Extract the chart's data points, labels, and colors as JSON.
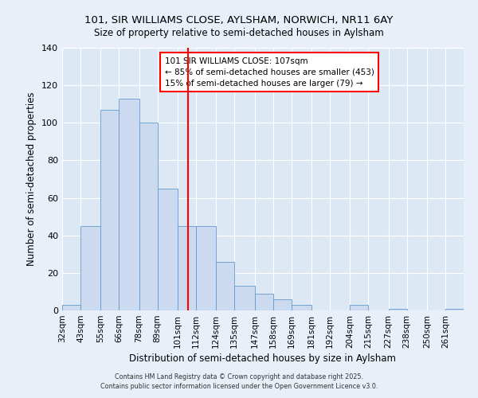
{
  "title": "101, SIR WILLIAMS CLOSE, AYLSHAM, NORWICH, NR11 6AY",
  "subtitle": "Size of property relative to semi-detached houses in Aylsham",
  "xlabel": "Distribution of semi-detached houses by size in Aylsham",
  "ylabel": "Number of semi-detached properties",
  "bin_labels": [
    "32sqm",
    "43sqm",
    "55sqm",
    "66sqm",
    "78sqm",
    "89sqm",
    "101sqm",
    "112sqm",
    "124sqm",
    "135sqm",
    "147sqm",
    "158sqm",
    "169sqm",
    "181sqm",
    "192sqm",
    "204sqm",
    "215sqm",
    "227sqm",
    "238sqm",
    "250sqm",
    "261sqm"
  ],
  "bin_edges": [
    32,
    43,
    55,
    66,
    78,
    89,
    101,
    112,
    124,
    135,
    147,
    158,
    169,
    181,
    192,
    204,
    215,
    227,
    238,
    250,
    261
  ],
  "bar_heights": [
    3,
    45,
    107,
    113,
    100,
    65,
    45,
    45,
    26,
    13,
    9,
    6,
    3,
    0,
    0,
    3,
    0,
    1,
    0,
    0,
    1
  ],
  "bar_color": "#ccdaf0",
  "bar_edge_color": "#6699cc",
  "marker_value": 107,
  "marker_color": "#ff0000",
  "annotation_title": "101 SIR WILLIAMS CLOSE: 107sqm",
  "annotation_line1": "← 85% of semi-detached houses are smaller (453)",
  "annotation_line2": "15% of semi-detached houses are larger (79) →",
  "ylim": [
    0,
    140
  ],
  "yticks": [
    0,
    20,
    40,
    60,
    80,
    100,
    120,
    140
  ],
  "footer1": "Contains HM Land Registry data © Crown copyright and database right 2025.",
  "footer2": "Contains public sector information licensed under the Open Government Licence v3.0.",
  "bg_color": "#e8eff8",
  "plot_bg_color": "#dce8f4"
}
